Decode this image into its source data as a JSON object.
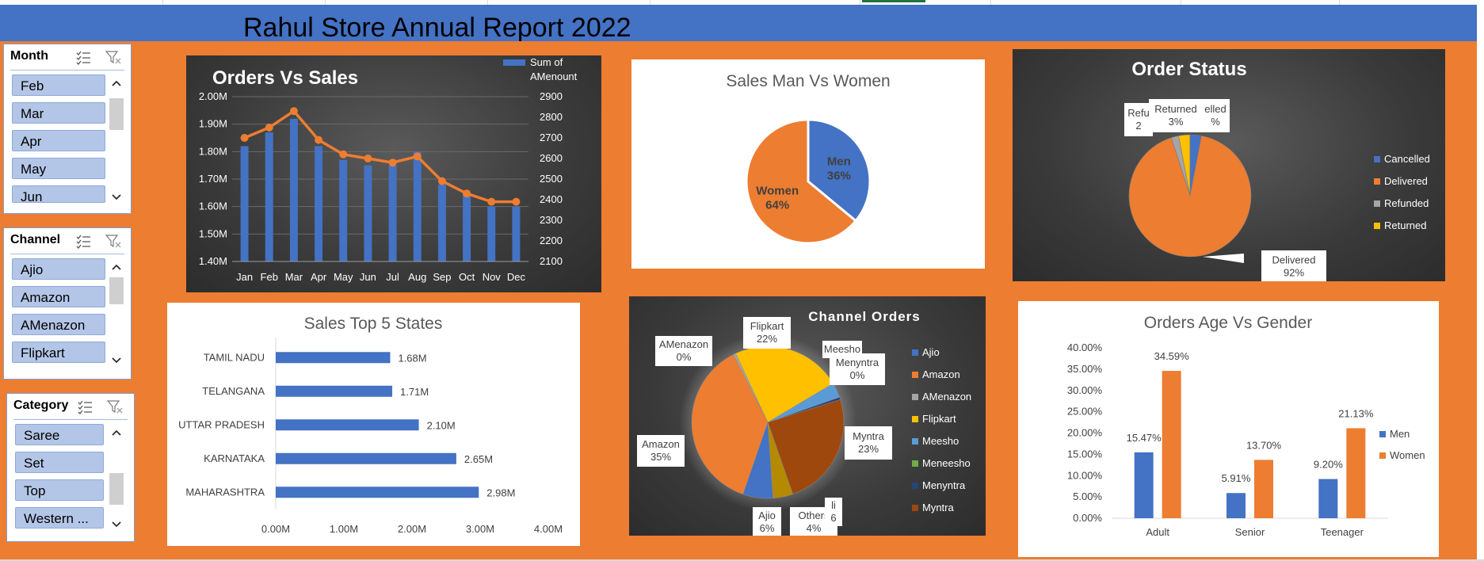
{
  "report": {
    "title": "Rahul Store Annual Report 2022"
  },
  "slicers": [
    {
      "name": "Month",
      "items": [
        "Feb",
        "Mar",
        "Apr",
        "May",
        "Jun"
      ]
    },
    {
      "name": "Channel",
      "items": [
        "Ajio",
        "Amazon",
        "AMenazon",
        "Flipkart"
      ]
    },
    {
      "name": "Category",
      "items": [
        "Saree",
        "Set",
        "Top",
        "Western ..."
      ]
    }
  ],
  "chart_data": [
    {
      "id": "orders-vs-sales",
      "type": "bar+line",
      "title": "Orders Vs Sales",
      "legend": "Sum of AMenount",
      "legend_position": "top-right",
      "categories": [
        "Jan",
        "Feb",
        "Mar",
        "Apr",
        "May",
        "Jun",
        "Jul",
        "Aug",
        "Sep",
        "Oct",
        "Nov",
        "Dec"
      ],
      "series": [
        {
          "kind": "bar",
          "axis": "left",
          "values": [
            1.82,
            1.87,
            1.92,
            1.82,
            1.77,
            1.75,
            1.75,
            1.8,
            1.68,
            1.65,
            1.6,
            1.6
          ]
        },
        {
          "kind": "line",
          "axis": "right",
          "values": [
            2700,
            2750,
            2830,
            2690,
            2620,
            2600,
            2580,
            2610,
            2490,
            2430,
            2390,
            2390
          ]
        }
      ],
      "y_left": {
        "min": 1.4,
        "max": 2.0,
        "ticks": [
          "1.40M",
          "1.50M",
          "1.60M",
          "1.70M",
          "1.80M",
          "1.90M",
          "2.00M"
        ]
      },
      "y_right": {
        "min": 2100,
        "max": 2900,
        "ticks": [
          "2100",
          "2200",
          "2300",
          "2400",
          "2500",
          "2600",
          "2700",
          "2800",
          "2900"
        ]
      },
      "colors": {
        "bar": "#4472c4",
        "line": "#ed7d31"
      }
    },
    {
      "id": "sales-men-women",
      "type": "pie",
      "title": "Sales Man Vs Women",
      "slices": [
        {
          "label": "Men",
          "value": 36,
          "text": "36%",
          "color": "#4472c4"
        },
        {
          "label": "Women",
          "value": 64,
          "text": "64%",
          "color": "#ed7d31"
        }
      ]
    },
    {
      "id": "order-status",
      "type": "pie",
      "title": "Order Status",
      "legend": [
        "Cancelled",
        "Delivered",
        "Refunded",
        "Returned"
      ],
      "legend_position": "right",
      "slices": [
        {
          "label": "Cancelled",
          "value": 3,
          "color": "#4472c4"
        },
        {
          "label": "Delivered",
          "value": 92,
          "color": "#ed7d31"
        },
        {
          "label": "Refunded",
          "value": 2,
          "color": "#a5a5a5"
        },
        {
          "label": "Returned",
          "value": 3,
          "color": "#ffc000"
        }
      ],
      "callouts": [
        {
          "lines": [
            "Refu",
            "2"
          ]
        },
        {
          "lines": [
            "Returned",
            "3%"
          ]
        },
        {
          "lines": [
            "elled",
            "%"
          ]
        },
        {
          "lines": [
            "Delivered",
            "92%"
          ]
        }
      ]
    },
    {
      "id": "sales-top-states",
      "type": "bar",
      "orientation": "horizontal",
      "title": "Sales Top 5 States",
      "categories": [
        "TAMIL NADU",
        "TELANGANA",
        "UTTAR PRADESH",
        "KARNATAKA",
        "MAHARASHTRA"
      ],
      "values": [
        1.68,
        1.71,
        2.1,
        2.65,
        2.98
      ],
      "labels": [
        "1.68M",
        "1.71M",
        "2.10M",
        "2.65M",
        "2.98M"
      ],
      "x_axis": {
        "min": 0,
        "max": 4,
        "ticks": [
          "0.00M",
          "1.00M",
          "2.00M",
          "3.00M",
          "4.00M"
        ]
      },
      "color": "#4472c4"
    },
    {
      "id": "channel-orders",
      "type": "pie",
      "title": "Channel Orders",
      "legend": [
        "Ajio",
        "Amazon",
        "AMenazon",
        "Flipkart",
        "Meesho",
        "Meneesho",
        "Menyntra",
        "Myntra"
      ],
      "legend_colors": [
        "#4472c4",
        "#ed7d31",
        "#a5a5a5",
        "#ffc000",
        "#5b9bd5",
        "#70ad47",
        "#264478",
        "#9e480e"
      ],
      "legend_position": "right",
      "slices": [
        {
          "label": "Ajio",
          "value": 6,
          "color": "#4472c4"
        },
        {
          "label": "Amazon",
          "value": 35,
          "color": "#ed7d31"
        },
        {
          "label": "AMenazon",
          "value": 0.5,
          "color": "#a5a5a5"
        },
        {
          "label": "Flipkart",
          "value": 22,
          "color": "#ffc000"
        },
        {
          "label": "Meesho",
          "value": 3,
          "color": "#5b9bd5"
        },
        {
          "label": "Menyntra",
          "value": 0.5,
          "color": "#264478"
        },
        {
          "label": "Myntra",
          "value": 23,
          "color": "#9e480e"
        },
        {
          "label": "Others",
          "value": 4,
          "color": "#b58a00"
        }
      ],
      "callouts": [
        {
          "lines": [
            "AMenazon",
            "0%"
          ]
        },
        {
          "lines": [
            "Flipkart",
            "22%"
          ]
        },
        {
          "lines": [
            "Meesho"
          ]
        },
        {
          "lines": [
            "Menyntra",
            "0%"
          ]
        },
        {
          "lines": [
            "Myntra",
            "23%"
          ]
        },
        {
          "lines": [
            "Amazon",
            "35%"
          ]
        },
        {
          "lines": [
            "Ajio",
            "6%"
          ]
        },
        {
          "lines": [
            "Others",
            "4%"
          ]
        },
        {
          "lines": [
            "li",
            "6"
          ]
        }
      ]
    },
    {
      "id": "orders-age-gender",
      "type": "bar",
      "title": "Orders Age Vs Gender",
      "categories": [
        "Adult",
        "Senior",
        "Teenager"
      ],
      "series": [
        {
          "name": "Men",
          "values": [
            15.47,
            5.91,
            9.2
          ],
          "labels": [
            "15.47%",
            "5.91%",
            "9.20%"
          ],
          "color": "#4472c4"
        },
        {
          "name": "Women",
          "values": [
            34.59,
            13.7,
            21.13
          ],
          "labels": [
            "34.59%",
            "13.70%",
            "21.13%"
          ],
          "color": "#ed7d31"
        }
      ],
      "y_axis": {
        "min": 0,
        "max": 40,
        "ticks": [
          "0.00%",
          "5.00%",
          "10.00%",
          "15.00%",
          "20.00%",
          "25.00%",
          "30.00%",
          "35.00%",
          "40.00%"
        ]
      },
      "legend_position": "right"
    }
  ]
}
